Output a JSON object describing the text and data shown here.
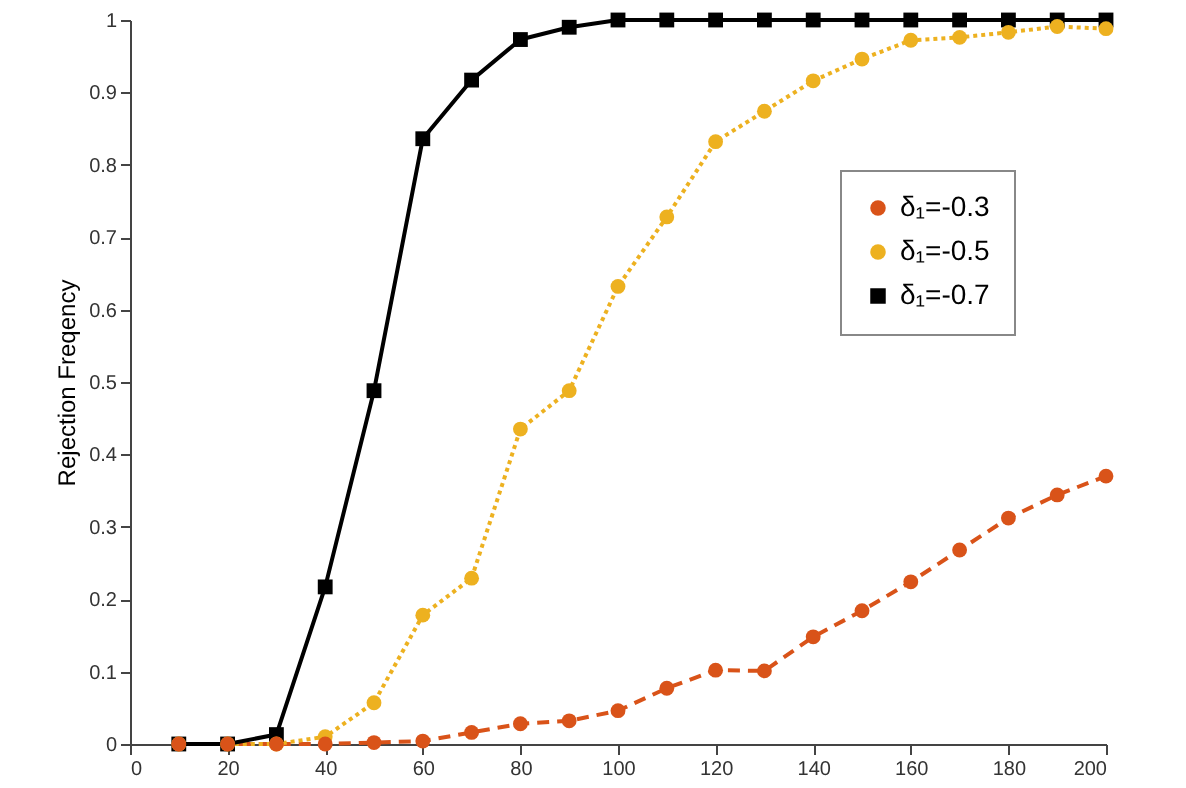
{
  "chart_data": {
    "type": "line",
    "ylabel": "Rejection Freqency",
    "x": [
      10,
      20,
      30,
      40,
      50,
      60,
      70,
      80,
      90,
      100,
      110,
      120,
      130,
      140,
      150,
      160,
      170,
      180,
      190,
      200
    ],
    "series": [
      {
        "name": "δ₁=-0.3",
        "color": "#d95319",
        "marker": "circle",
        "line_style": "dashed",
        "values": [
          0,
          0,
          0,
          0,
          0.002,
          0.004,
          0.016,
          0.028,
          0.032,
          0.046,
          0.077,
          0.102,
          0.101,
          0.148,
          0.184,
          0.224,
          0.268,
          0.312,
          0.344,
          0.37
        ]
      },
      {
        "name": "δ₁=-0.5",
        "color": "#edb120",
        "marker": "circle",
        "line_style": "dotted",
        "values": [
          0,
          0,
          0,
          0.01,
          0.057,
          0.178,
          0.229,
          0.435,
          0.488,
          0.632,
          0.728,
          0.832,
          0.874,
          0.916,
          0.946,
          0.972,
          0.976,
          0.983,
          0.991,
          0.988
        ]
      },
      {
        "name": "δ₁=-0.7",
        "color": "#000000",
        "marker": "square",
        "line_style": "solid",
        "values": [
          0,
          0,
          0.013,
          0.217,
          0.488,
          0.836,
          0.917,
          0.973,
          0.99,
          1,
          1,
          1,
          1,
          1,
          1,
          1,
          1,
          1,
          1,
          1
        ]
      }
    ],
    "xlim": [
      0,
      200
    ],
    "xticks": [
      0,
      20,
      40,
      60,
      80,
      100,
      120,
      140,
      160,
      180,
      200
    ],
    "ylim": [
      0,
      1
    ],
    "yticks": [
      0,
      0.1,
      0.2,
      0.3,
      0.4,
      0.5,
      0.6,
      0.7,
      0.8,
      0.9,
      1
    ],
    "grid": false,
    "legend": "right"
  }
}
